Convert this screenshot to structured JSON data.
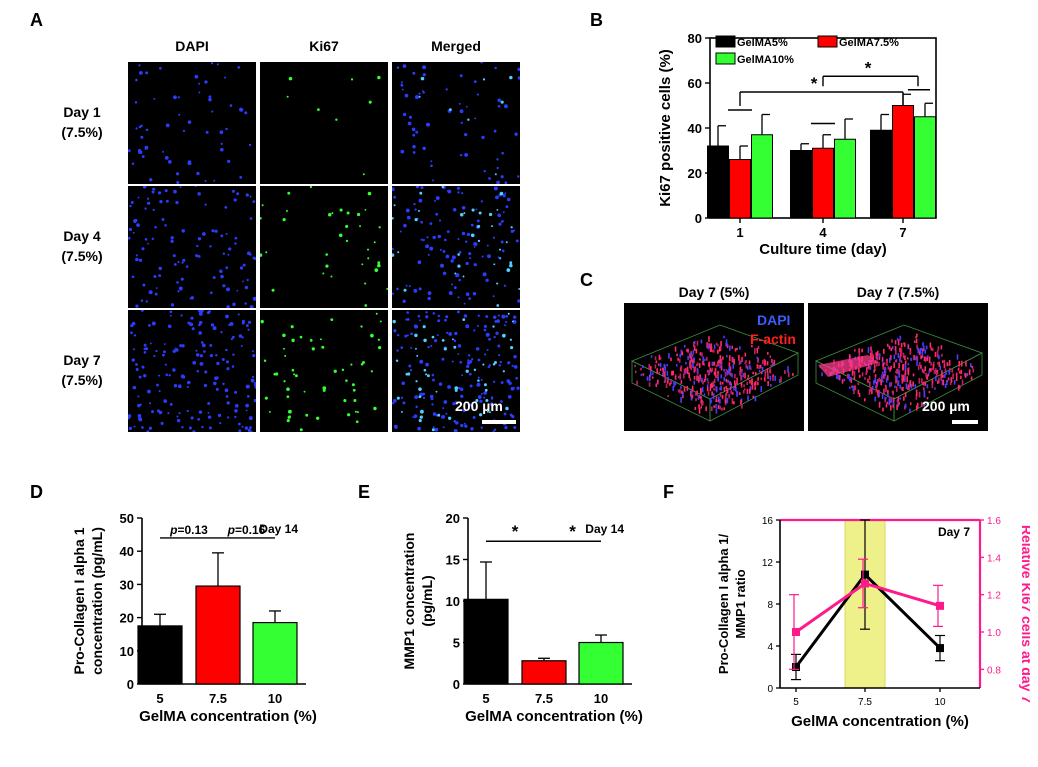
{
  "panel_labels": {
    "A": "A",
    "B": "B",
    "C": "C",
    "D": "D",
    "E": "E",
    "F": "F"
  },
  "panel_a": {
    "columns": [
      "DAPI",
      "Ki67",
      "Merged"
    ],
    "rows": [
      {
        "day": "Day 1",
        "conc": "(7.5%)"
      },
      {
        "day": "Day 4",
        "conc": "(7.5%)"
      },
      {
        "day": "Day 7",
        "conc": "(7.5%)"
      }
    ],
    "scale_bar": "200 µm",
    "colors": {
      "dapi": "#2b3cff",
      "ki67": "#33ff33",
      "merged": "#4fd0ff"
    }
  },
  "panel_c": {
    "titles": [
      "Day 7 (5%)",
      "Day 7 (7.5%)"
    ],
    "legend": [
      {
        "label": "DAPI",
        "color": "#3b5bff"
      },
      {
        "label": "F-actin",
        "color": "#ff2020"
      }
    ],
    "scale_bar": "200 µm"
  },
  "chart_data": [
    {
      "id": "B",
      "type": "bar",
      "title": "",
      "xlabel": "Culture time (day)",
      "ylabel": "Ki67 positive cells (%)",
      "categories": [
        "1",
        "4",
        "7"
      ],
      "ylim": [
        0,
        80
      ],
      "yticks": [
        0,
        20,
        40,
        60,
        80
      ],
      "series": [
        {
          "name": "GelMA5%",
          "color": "#000000",
          "values": [
            32,
            30,
            39
          ],
          "errors": [
            9,
            3,
            7
          ]
        },
        {
          "name": "GelMA7.5%",
          "color": "#ff0000",
          "values": [
            26,
            31,
            50
          ],
          "errors": [
            6,
            6,
            5
          ]
        },
        {
          "name": "GelMA10%",
          "color": "#33ff33",
          "values": [
            37,
            35,
            45
          ],
          "errors": [
            9,
            9,
            6
          ]
        }
      ],
      "significance": [
        "*",
        "*"
      ],
      "legend_position": "top-left"
    },
    {
      "id": "D",
      "type": "bar",
      "annotation": "Day 14",
      "xlabel": "GelMA concentration (%)",
      "ylabel": "Pro-Collagen I alpha 1 concentration (pg/mL)",
      "categories": [
        "5",
        "7.5",
        "10"
      ],
      "ylim": [
        0,
        50
      ],
      "yticks": [
        0,
        10,
        20,
        30,
        40,
        50
      ],
      "values": [
        17.5,
        29.5,
        18.5
      ],
      "errors": [
        3.5,
        10,
        3.5
      ],
      "colors": [
        "#000000",
        "#ff0000",
        "#33ff33"
      ],
      "p_values": [
        {
          "italic": "p",
          "text": "=0.13"
        },
        {
          "italic": "p",
          "text": "=0.16"
        }
      ]
    },
    {
      "id": "E",
      "type": "bar",
      "annotation": "Day 14",
      "xlabel": "GelMA concentration (%)",
      "ylabel": "MMP1 concentration (pg/mL)",
      "categories": [
        "5",
        "7.5",
        "10"
      ],
      "ylim": [
        0,
        20
      ],
      "yticks": [
        0,
        5,
        10,
        15,
        20
      ],
      "values": [
        10.2,
        2.8,
        5.0
      ],
      "errors": [
        4.5,
        0.3,
        0.9
      ],
      "colors": [
        "#000000",
        "#ff0000",
        "#33ff33"
      ],
      "significance": [
        "*",
        "*"
      ]
    },
    {
      "id": "F",
      "type": "line",
      "annotation": "Day 7",
      "xlabel": "GelMA concentration (%)",
      "ylabel": "Pro-Collagen I alpha 1/ MMP1 ratio",
      "y2label": "Relative Ki67 cells at day 7",
      "x": [
        "5",
        "7.5",
        "10"
      ],
      "ylim": [
        0,
        16
      ],
      "yticks": [
        0,
        4,
        8,
        12,
        16
      ],
      "y2lim": [
        0.7,
        1.6
      ],
      "y2ticks": [
        "0.8",
        "1.0",
        "1.2",
        "1.4",
        "1.6"
      ],
      "series": [
        {
          "axis": "left",
          "color": "#000000",
          "marker": "square",
          "values": [
            2.0,
            10.8,
            3.8
          ],
          "errors": [
            1.2,
            5.2,
            1.2
          ]
        },
        {
          "axis": "right",
          "color": "#ff1a8c",
          "marker": "square",
          "values": [
            1.0,
            1.26,
            1.14
          ],
          "errors": [
            0.2,
            0.13,
            0.11
          ]
        }
      ],
      "highlight": {
        "x": "7.5",
        "color": "#eef08a"
      }
    }
  ]
}
